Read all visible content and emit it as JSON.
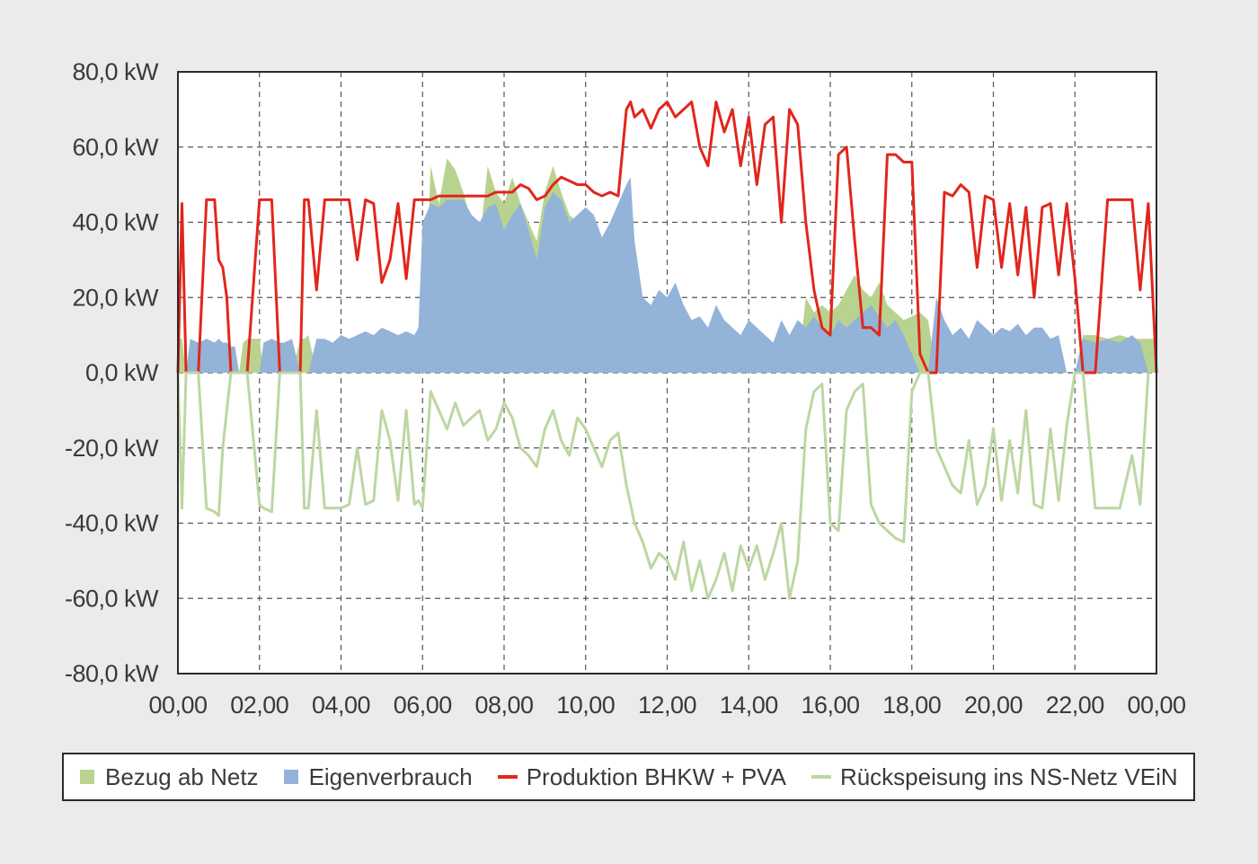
{
  "chart_data": {
    "type": "area",
    "title": "",
    "xlabel": "",
    "ylabel": "",
    "ylim": [
      -80,
      80
    ],
    "xlim": [
      0,
      24
    ],
    "x_tick_labels": [
      "00,00",
      "02,00",
      "04,00",
      "06,00",
      "08,00",
      "10,00",
      "12,00",
      "14,00",
      "16,00",
      "18,00",
      "20,00",
      "22,00",
      "00,00"
    ],
    "y_tick_labels": [
      "80,0 kW",
      "60,0 kW",
      "40,0 kW",
      "20,0 kW",
      "0,0 kW",
      "-20,0 kW",
      "-40,0 kW",
      "-60,0 kW",
      "-80,0 kW"
    ],
    "grid": true,
    "legend_position": "bottom",
    "x_hours": [
      0,
      0.1,
      0.2,
      0.3,
      0.5,
      0.7,
      0.9,
      1.0,
      1.1,
      1.2,
      1.3,
      1.4,
      1.5,
      1.6,
      1.7,
      2.0,
      2.1,
      2.3,
      2.5,
      2.6,
      2.8,
      3.0,
      3.1,
      3.2,
      3.4,
      3.6,
      3.8,
      4.0,
      4.2,
      4.4,
      4.6,
      4.8,
      5.0,
      5.2,
      5.4,
      5.6,
      5.8,
      5.9,
      6.0,
      6.2,
      6.4,
      6.6,
      6.8,
      7.0,
      7.2,
      7.4,
      7.6,
      7.8,
      8.0,
      8.2,
      8.4,
      8.6,
      8.8,
      9.0,
      9.2,
      9.4,
      9.6,
      9.8,
      10.0,
      10.2,
      10.4,
      10.6,
      10.8,
      11.0,
      11.1,
      11.2,
      11.4,
      11.6,
      11.8,
      12.0,
      12.2,
      12.4,
      12.6,
      12.8,
      13.0,
      13.2,
      13.4,
      13.6,
      13.8,
      14.0,
      14.2,
      14.4,
      14.6,
      14.8,
      15.0,
      15.2,
      15.4,
      15.6,
      15.8,
      16.0,
      16.2,
      16.4,
      16.6,
      16.8,
      17.0,
      17.2,
      17.4,
      17.6,
      17.8,
      18.0,
      18.2,
      18.4,
      18.6,
      18.8,
      19.0,
      19.2,
      19.4,
      19.6,
      19.8,
      20.0,
      20.2,
      20.4,
      20.6,
      20.8,
      21.0,
      21.2,
      21.4,
      21.6,
      21.8,
      22.0,
      22.2,
      22.5,
      22.8,
      23.1,
      23.4,
      23.6,
      23.8,
      24.0
    ],
    "series": [
      {
        "name": "Bezug ab Netz",
        "color": "#b8d38f",
        "style": "area",
        "values": [
          9,
          9,
          0,
          0,
          0,
          0,
          0,
          0,
          0,
          0,
          0,
          0,
          0,
          8,
          9,
          9,
          0,
          0,
          0,
          0,
          0,
          9,
          9,
          10,
          0,
          0,
          0,
          0,
          0,
          0,
          0,
          0,
          0,
          0,
          0,
          0,
          0,
          0,
          0,
          55,
          45,
          57,
          54,
          48,
          40,
          35,
          55,
          48,
          45,
          52,
          45,
          40,
          35,
          48,
          55,
          48,
          42,
          40,
          44,
          38,
          30,
          40,
          35,
          0,
          0,
          0,
          0,
          0,
          0,
          0,
          0,
          0,
          0,
          0,
          0,
          0,
          0,
          0,
          0,
          0,
          0,
          0,
          0,
          0,
          0,
          0,
          20,
          16,
          18,
          16,
          18,
          22,
          26,
          22,
          20,
          24,
          18,
          16,
          14,
          15,
          16,
          14,
          0,
          0,
          0,
          0,
          0,
          0,
          0,
          0,
          0,
          0,
          0,
          0,
          0,
          0,
          0,
          0,
          0,
          0,
          10,
          10,
          9,
          10,
          9,
          9,
          9,
          9
        ]
      },
      {
        "name": "Eigenverbrauch",
        "color": "#93b3d8",
        "style": "area",
        "values": [
          0,
          0,
          0,
          9,
          8,
          9,
          8,
          9,
          8,
          8,
          7,
          7,
          0,
          0,
          0,
          0,
          8,
          9,
          8,
          8,
          9,
          0,
          0,
          0,
          9,
          9,
          8,
          10,
          9,
          10,
          11,
          10,
          12,
          11,
          10,
          11,
          10,
          12,
          40,
          45,
          44,
          46,
          46,
          46,
          42,
          40,
          44,
          45,
          38,
          42,
          45,
          38,
          30,
          44,
          48,
          46,
          40,
          42,
          44,
          42,
          36,
          40,
          45,
          50,
          52,
          35,
          20,
          18,
          22,
          20,
          24,
          18,
          14,
          15,
          12,
          18,
          14,
          12,
          10,
          14,
          12,
          10,
          8,
          14,
          10,
          14,
          12,
          15,
          12,
          10,
          14,
          12,
          14,
          16,
          18,
          15,
          12,
          14,
          10,
          5,
          0,
          0,
          20,
          14,
          10,
          12,
          9,
          14,
          12,
          10,
          12,
          11,
          13,
          10,
          12,
          12,
          9,
          10,
          0,
          0,
          9,
          8,
          9,
          8,
          10,
          8,
          0
        ]
      },
      {
        "name": "Produktion BHKW + PVA",
        "color": "#e1261c",
        "style": "line",
        "values": [
          0,
          45,
          0,
          0,
          0,
          46,
          46,
          30,
          28,
          20,
          0,
          0,
          0,
          0,
          0,
          46,
          46,
          46,
          0,
          0,
          0,
          0,
          46,
          46,
          22,
          46,
          46,
          46,
          46,
          30,
          46,
          45,
          24,
          30,
          45,
          25,
          46,
          46,
          46,
          46,
          47,
          47,
          47,
          47,
          47,
          47,
          47,
          48,
          48,
          48,
          50,
          49,
          46,
          47,
          50,
          52,
          51,
          50,
          50,
          48,
          47,
          48,
          47,
          70,
          72,
          68,
          70,
          65,
          70,
          72,
          68,
          70,
          72,
          60,
          55,
          72,
          64,
          70,
          55,
          68,
          50,
          66,
          68,
          40,
          70,
          66,
          40,
          22,
          12,
          10,
          58,
          60,
          35,
          12,
          12,
          10,
          58,
          58,
          56,
          56,
          5,
          0,
          0,
          48,
          47,
          50,
          48,
          28,
          47,
          46,
          28,
          45,
          26,
          44,
          20,
          44,
          45,
          26,
          45,
          25,
          0,
          0,
          46,
          46,
          46,
          22,
          45,
          0
        ]
      },
      {
        "name": "Rückspeisung ins NS-Netz VEiN",
        "color": "#bcd7a2",
        "style": "line",
        "values": [
          0,
          -36,
          0,
          0,
          0,
          -36,
          -37,
          -38,
          -20,
          -10,
          0,
          0,
          0,
          0,
          0,
          -35,
          -36,
          -37,
          0,
          0,
          0,
          0,
          -36,
          -36,
          -10,
          -36,
          -36,
          -36,
          -35,
          -20,
          -35,
          -34,
          -10,
          -18,
          -34,
          -10,
          -35,
          -34,
          -36,
          -5,
          -10,
          -15,
          -8,
          -14,
          -12,
          -10,
          -18,
          -15,
          -8,
          -12,
          -20,
          -22,
          -25,
          -15,
          -10,
          -18,
          -22,
          -12,
          -15,
          -20,
          -25,
          -18,
          -16,
          -30,
          -35,
          -40,
          -45,
          -52,
          -48,
          -50,
          -55,
          -45,
          -58,
          -50,
          -60,
          -55,
          -48,
          -58,
          -46,
          -52,
          -46,
          -55,
          -48,
          -40,
          -60,
          -50,
          -15,
          -5,
          -3,
          -40,
          -42,
          -10,
          -5,
          -3,
          -35,
          -40,
          -42,
          -44,
          -45,
          -5,
          0,
          0,
          -20,
          -25,
          -30,
          -32,
          -18,
          -35,
          -30,
          -15,
          -34,
          -18,
          -32,
          -10,
          -35,
          -36,
          -15,
          -34,
          -14,
          0,
          0,
          -36,
          -36,
          -36,
          -22,
          -35,
          0
        ]
      }
    ]
  },
  "legend": {
    "items": [
      "Bezug ab Netz",
      "Eigenverbrauch",
      "Produktion BHKW + PVA",
      "Rückspeisung ins NS-Netz VEiN"
    ]
  }
}
